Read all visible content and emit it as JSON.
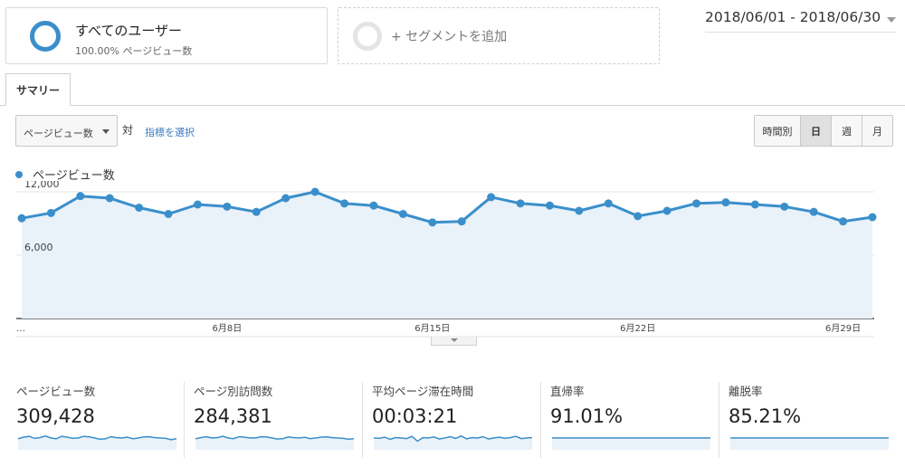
{
  "segments": {
    "active": {
      "name": "すべてのユーザー",
      "subtitle": "100.00% ページビュー数"
    },
    "add_label": "+ セグメントを追加"
  },
  "date_range": "2018/06/01 - 2018/06/30",
  "tabs": [
    {
      "label": "サマリー",
      "selected": true
    }
  ],
  "controls": {
    "metric_selected": "ページビュー数",
    "vs_label": "対",
    "choose_metric_label": "指標を選択",
    "granularity": [
      {
        "label": "時間別",
        "selected": false
      },
      {
        "label": "日",
        "selected": true
      },
      {
        "label": "週",
        "selected": false
      },
      {
        "label": "月",
        "selected": false
      }
    ]
  },
  "colors": {
    "series": "#3a8fcb",
    "area": "#e9f1f9",
    "link": "#3b78c2"
  },
  "chart_data": {
    "type": "line",
    "series": [
      {
        "name": "ページビュー数",
        "values": [
          9500,
          10000,
          11600,
          11400,
          10500,
          9900,
          10800,
          10600,
          10100,
          11400,
          12000,
          10900,
          10700,
          9900,
          9100,
          9200,
          11500,
          10900,
          10700,
          10200,
          10900,
          9700,
          10200,
          10900,
          11000,
          10800,
          10600,
          10100,
          9200,
          9600
        ]
      }
    ],
    "x_tick_labels": [
      "…",
      "6月8日",
      "6月15日",
      "6月22日",
      "6月29日"
    ],
    "y_tick_labels": [
      "12,000",
      "6,000"
    ],
    "ylim": [
      0,
      12000
    ],
    "grid": true
  },
  "scorecards": [
    {
      "label": "ページビュー数",
      "value": "309,428",
      "spark": [
        0.45,
        0.55,
        0.6,
        0.48,
        0.52,
        0.62,
        0.5,
        0.45,
        0.6,
        0.55,
        0.48,
        0.5,
        0.6,
        0.57,
        0.5,
        0.42,
        0.45,
        0.58,
        0.52,
        0.5,
        0.55,
        0.45,
        0.5,
        0.56,
        0.58,
        0.52,
        0.5,
        0.48,
        0.4,
        0.45
      ]
    },
    {
      "label": "ページ別訪問数",
      "value": "284,381",
      "spark": [
        0.45,
        0.52,
        0.58,
        0.5,
        0.52,
        0.6,
        0.5,
        0.46,
        0.58,
        0.55,
        0.5,
        0.5,
        0.58,
        0.56,
        0.5,
        0.44,
        0.46,
        0.56,
        0.52,
        0.5,
        0.54,
        0.46,
        0.5,
        0.55,
        0.57,
        0.52,
        0.5,
        0.48,
        0.42,
        0.46
      ]
    },
    {
      "label": "平均ページ滞在時間",
      "value": "00:03:21",
      "spark": [
        0.5,
        0.48,
        0.55,
        0.42,
        0.52,
        0.5,
        0.46,
        0.6,
        0.3,
        0.52,
        0.5,
        0.56,
        0.44,
        0.5,
        0.58,
        0.48,
        0.62,
        0.45,
        0.52,
        0.5,
        0.58,
        0.44,
        0.5,
        0.55,
        0.48,
        0.52,
        0.6,
        0.46,
        0.5,
        0.52
      ]
    },
    {
      "label": "直帰率",
      "value": "91.01%",
      "spark": [
        0.5,
        0.5,
        0.5,
        0.5,
        0.5,
        0.5,
        0.5,
        0.5,
        0.5,
        0.5,
        0.5,
        0.5,
        0.5,
        0.5,
        0.5,
        0.5,
        0.5,
        0.5,
        0.5,
        0.5,
        0.5,
        0.5,
        0.5,
        0.5,
        0.5,
        0.5,
        0.5,
        0.5,
        0.5,
        0.5
      ]
    },
    {
      "label": "離脱率",
      "value": "85.21%",
      "spark": [
        0.5,
        0.5,
        0.5,
        0.5,
        0.5,
        0.5,
        0.5,
        0.5,
        0.5,
        0.5,
        0.5,
        0.5,
        0.5,
        0.5,
        0.5,
        0.5,
        0.5,
        0.5,
        0.5,
        0.5,
        0.5,
        0.5,
        0.5,
        0.5,
        0.5,
        0.5,
        0.5,
        0.5,
        0.5,
        0.5
      ]
    }
  ]
}
